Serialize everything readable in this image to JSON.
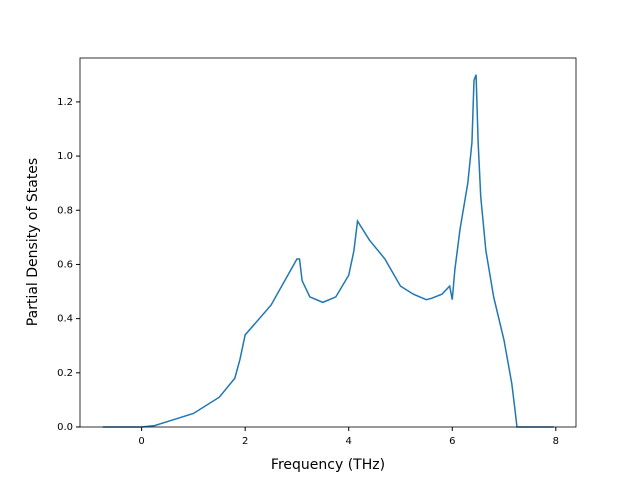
{
  "chart_data": {
    "type": "line",
    "xlabel": "Frequency (THz)",
    "ylabel": "Partial Density of States",
    "x": [
      -0.75,
      0,
      0.25,
      0.5,
      1.0,
      1.5,
      1.8,
      1.9,
      2.0,
      2.5,
      3.0,
      3.05,
      3.1,
      3.25,
      3.5,
      3.75,
      4.0,
      4.1,
      4.17,
      4.4,
      4.7,
      4.85,
      5.0,
      5.25,
      5.5,
      5.6,
      5.8,
      5.95,
      6.0,
      6.05,
      6.15,
      6.3,
      6.38,
      6.42,
      6.46,
      6.5,
      6.55,
      6.65,
      6.8,
      7.0,
      7.15,
      7.22,
      7.25,
      7.96
    ],
    "series": [
      {
        "color": "#1f77b4",
        "values": [
          0,
          0,
          0.005,
          0.02,
          0.05,
          0.11,
          0.18,
          0.25,
          0.34,
          0.45,
          0.62,
          0.62,
          0.54,
          0.48,
          0.46,
          0.48,
          0.56,
          0.65,
          0.76,
          0.69,
          0.62,
          0.57,
          0.52,
          0.49,
          0.47,
          0.475,
          0.49,
          0.52,
          0.47,
          0.58,
          0.73,
          0.9,
          1.05,
          1.28,
          1.3,
          1.05,
          0.85,
          0.65,
          0.48,
          0.32,
          0.16,
          0.05,
          0.0,
          0
        ]
      }
    ],
    "xlim": [
      -1.19,
      8.39
    ],
    "ylim": [
      0,
      1.362
    ],
    "xticks": [
      0,
      2,
      4,
      6,
      8
    ],
    "yticks": [
      {
        "value": 0,
        "label": "0.0"
      },
      0.2,
      0.4,
      0.6,
      0.8,
      {
        "value": 1,
        "label": "1.0"
      },
      1.2
    ]
  }
}
